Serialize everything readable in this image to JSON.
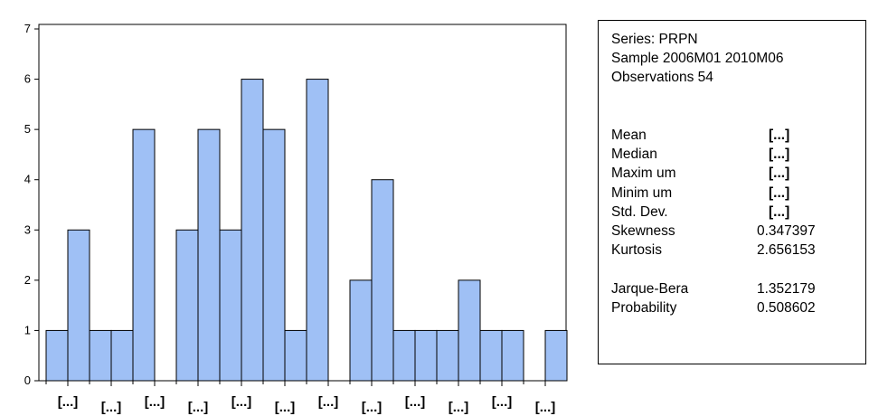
{
  "chart_data": {
    "type": "bar",
    "ylim": [
      0,
      7
    ],
    "yticks": [
      0,
      1,
      2,
      3,
      4,
      5,
      6,
      7
    ],
    "values": [
      1,
      3,
      1,
      1,
      5,
      0,
      3,
      5,
      3,
      6,
      5,
      1,
      6,
      0,
      2,
      4,
      1,
      1,
      1,
      2,
      1,
      1,
      0,
      1
    ],
    "xtick_labels": [
      "[...]",
      "[...]",
      "[...]",
      "[...]",
      "[...]",
      "[...]",
      "[...]",
      "[...]",
      "[...]",
      "[...]",
      "[...]",
      "[...]",
      "[...]"
    ],
    "bar_color": "#9fc0f5",
    "bar_edge_color": "#000000",
    "grid": false,
    "legend": "none"
  },
  "stats": {
    "series": "Series: PRPN",
    "sample": "Sample 2006M01 2010M06",
    "observations": "Observations 54",
    "rows": [
      {
        "label": "Mean",
        "value": "[...]"
      },
      {
        "label": "Median",
        "value": "[...]"
      },
      {
        "label": "Maxim um",
        "value": "[...]"
      },
      {
        "label": "Minim um",
        "value": "[...]"
      },
      {
        "label": "Std. Dev.",
        "value": "[...]"
      },
      {
        "label": "Skewness",
        "value": "0.347397"
      },
      {
        "label": "Kurtosis",
        "value": "2.656153"
      },
      {
        "label": "Jarque-Bera",
        "value": "1.352179"
      },
      {
        "label": "Probability",
        "value": "0.508602"
      }
    ]
  }
}
